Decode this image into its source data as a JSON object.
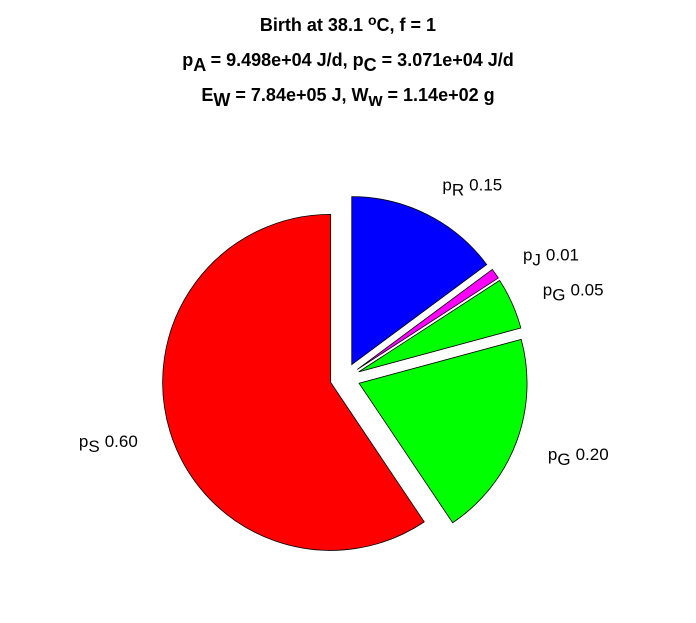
{
  "chart_data": {
    "type": "pie",
    "title_lines": [
      [
        {
          "text": "Birth at 38.1 "
        },
        {
          "text": "o",
          "script": "super"
        },
        {
          "text": "C, f = 1"
        }
      ],
      [
        {
          "text": "p"
        },
        {
          "text": "A",
          "script": "sub"
        },
        {
          "text": " = 9.498e+04 J/d, p"
        },
        {
          "text": "C",
          "script": "sub"
        },
        {
          "text": " = 3.071e+04 J/d"
        }
      ],
      [
        {
          "text": "E"
        },
        {
          "text": "W",
          "script": "sub"
        },
        {
          "text": " = 7.84e+05 J, W"
        },
        {
          "text": "w",
          "script": "sub"
        },
        {
          "text": " = 1.14e+02 g"
        }
      ]
    ],
    "categories": [
      {
        "main": "p",
        "sub": "R"
      },
      {
        "main": "p",
        "sub": "J"
      },
      {
        "main": "p",
        "sub": "G"
      },
      {
        "main": "p",
        "sub": "G"
      },
      {
        "main": "p",
        "sub": "S"
      }
    ],
    "values": [
      0.15,
      0.01,
      0.05,
      0.2,
      0.6
    ],
    "value_labels": [
      "0.15",
      "0.01",
      "0.05",
      "0.20",
      "0.60"
    ],
    "colors": [
      "#0000ff",
      "#ff00ff",
      "#00ff00",
      "#00ff00",
      "#ff0000"
    ],
    "explode": [
      true,
      true,
      true,
      true,
      true
    ]
  }
}
